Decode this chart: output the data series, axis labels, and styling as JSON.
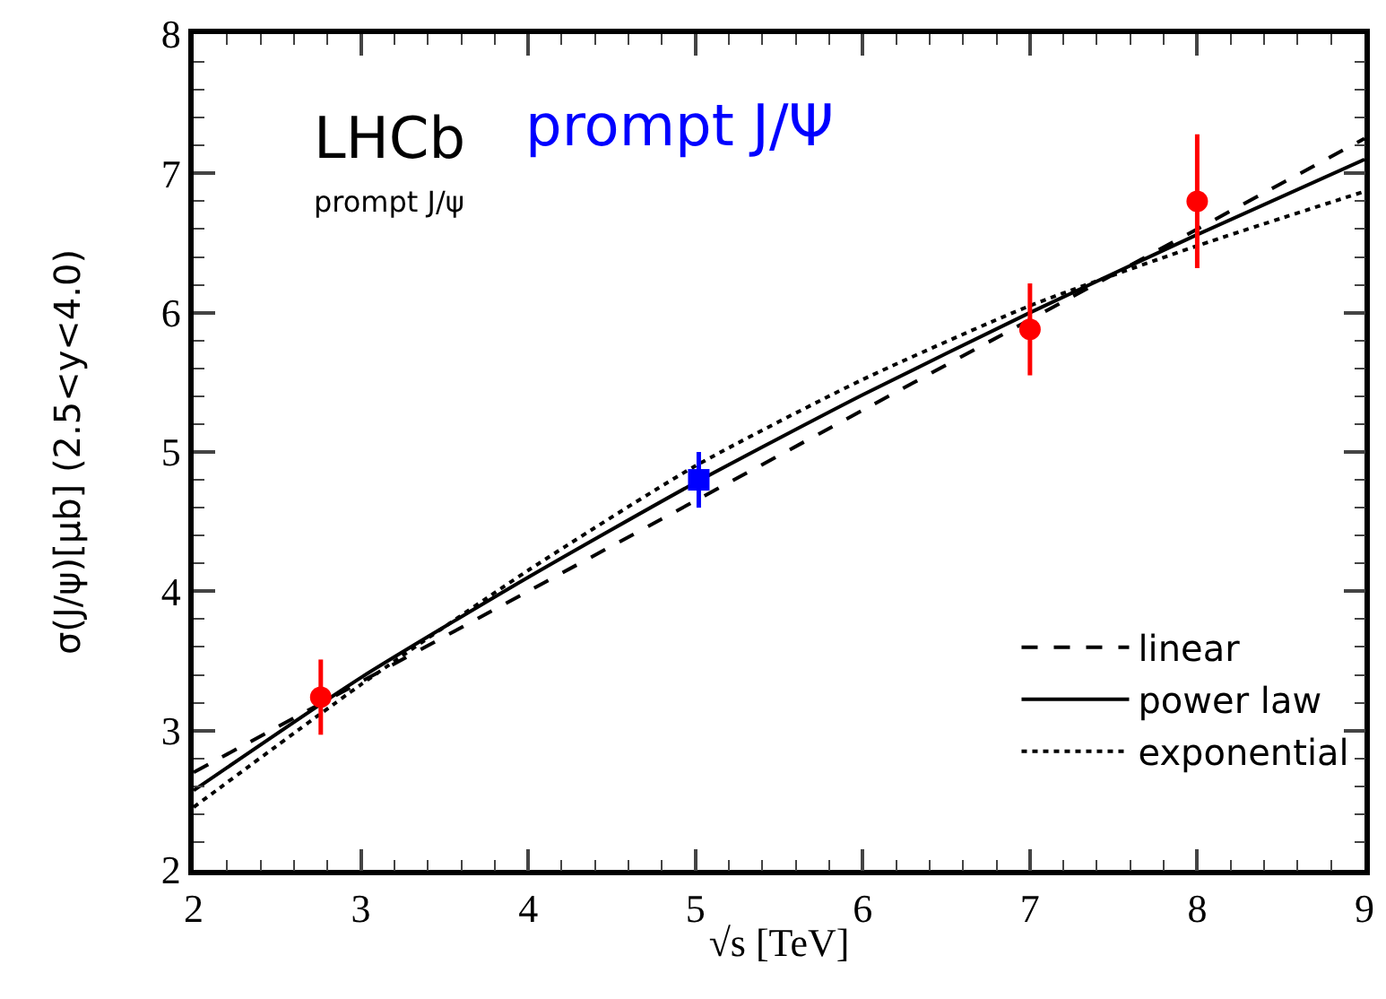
{
  "chart_data": {
    "type": "scatter",
    "xlabel": "√s [TeV]",
    "ylabel": "σ(J/ψ)[μb] (2.5<y<4.0)",
    "annotations": [
      "LHCb",
      "prompt J/Ψ",
      "prompt J/ψ"
    ],
    "xlim": [
      2,
      9
    ],
    "xticks": [
      2,
      3,
      4,
      5,
      6,
      7,
      8,
      9
    ],
    "ylim": [
      2,
      8
    ],
    "yticks": [
      2,
      3,
      4,
      5,
      6,
      7,
      8
    ],
    "grid": false,
    "legend": "bottom right",
    "series": [
      {
        "type": "line",
        "name": "linear",
        "color": "#000000",
        "line_style": "dashed",
        "marker": "none",
        "x": [
          2,
          3,
          4,
          5,
          6,
          7,
          8,
          9
        ],
        "values": [
          2.7,
          3.35,
          4.0,
          4.65,
          5.3,
          5.95,
          6.6,
          7.25
        ]
      },
      {
        "type": "line",
        "name": "power law",
        "color": "#000000",
        "line_style": "solid",
        "marker": "none",
        "x": [
          2,
          3,
          4,
          5,
          6,
          7,
          8,
          9
        ],
        "values": [
          2.57,
          3.38,
          4.1,
          4.78,
          5.41,
          6.0,
          6.56,
          7.1
        ]
      },
      {
        "type": "line",
        "name": "exponential",
        "color": "#000000",
        "line_style": "dotted",
        "marker": "none",
        "x": [
          2,
          3,
          4,
          5,
          6,
          7,
          8,
          9
        ],
        "values": [
          2.45,
          3.33,
          4.15,
          4.9,
          5.52,
          6.05,
          6.48,
          6.87
        ]
      },
      {
        "color": "#ff0000",
        "marker": "circle",
        "x": [
          2.76,
          7,
          8
        ],
        "values": [
          3.24,
          5.88,
          6.8
        ],
        "errors": [
          0.27,
          0.33,
          0.48
        ]
      },
      {
        "color": "#0000ff",
        "marker": "square",
        "x": [
          5.02
        ],
        "values": [
          4.8
        ],
        "errors": [
          0.2
        ]
      }
    ]
  }
}
